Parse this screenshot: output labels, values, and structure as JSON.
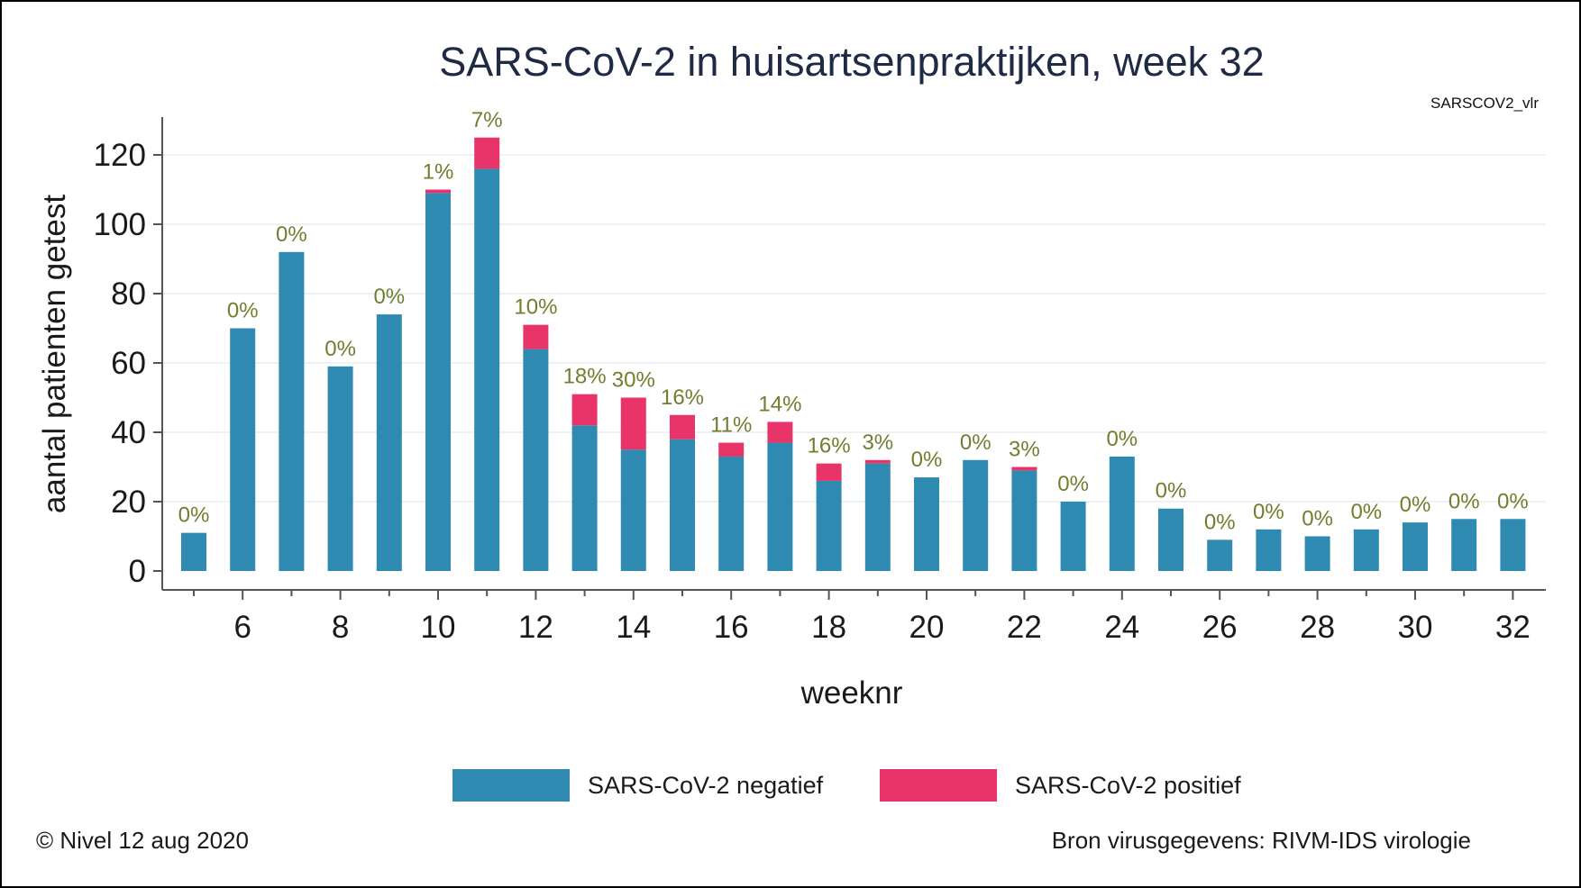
{
  "chart_data": {
    "type": "bar",
    "stacked": true,
    "title": "SARS-CoV-2 in huisartsenpraktijken, week 32",
    "code_label": "SARSCOV2_vlr",
    "xlabel": "weeknr",
    "ylabel": "aantal patienten getest",
    "ylim": [
      0,
      130
    ],
    "yticks": [
      0,
      20,
      40,
      60,
      80,
      100,
      120
    ],
    "xticks": [
      6,
      8,
      10,
      12,
      14,
      16,
      18,
      20,
      22,
      24,
      26,
      28,
      30,
      32
    ],
    "grid": true,
    "legend_position": "bottom",
    "categories": [
      5,
      6,
      7,
      8,
      9,
      10,
      11,
      12,
      13,
      14,
      15,
      16,
      17,
      18,
      19,
      20,
      21,
      22,
      23,
      24,
      25,
      26,
      27,
      28,
      29,
      30,
      31,
      32
    ],
    "series": [
      {
        "name": "SARS-CoV-2 negatief",
        "color": "#2e8ab0",
        "values": [
          11,
          70,
          92,
          59,
          74,
          109,
          116,
          64,
          42,
          35,
          38,
          33,
          37,
          26,
          31,
          27,
          32,
          29,
          20,
          33,
          18,
          9,
          12,
          10,
          12,
          14,
          15,
          15
        ]
      },
      {
        "name": "SARS-CoV-2 positief",
        "color": "#e83468",
        "values": [
          0,
          0,
          0,
          0,
          0,
          1,
          9,
          7,
          9,
          15,
          7,
          4,
          6,
          5,
          1,
          0,
          0,
          1,
          0,
          0,
          0,
          0,
          0,
          0,
          0,
          0,
          0,
          0
        ]
      }
    ],
    "percent_labels": [
      "0%",
      "0%",
      "0%",
      "0%",
      "0%",
      "1%",
      "7%",
      "10%",
      "18%",
      "30%",
      "16%",
      "11%",
      "14%",
      "16%",
      "3%",
      "0%",
      "0%",
      "3%",
      "0%",
      "0%",
      "0%",
      "0%",
      "0%",
      "0%",
      "0%",
      "0%",
      "0%",
      "0%"
    ]
  },
  "footer": {
    "left": "© Nivel 12 aug 2020",
    "right": "Bron virusgegevens: RIVM-IDS virologie"
  }
}
